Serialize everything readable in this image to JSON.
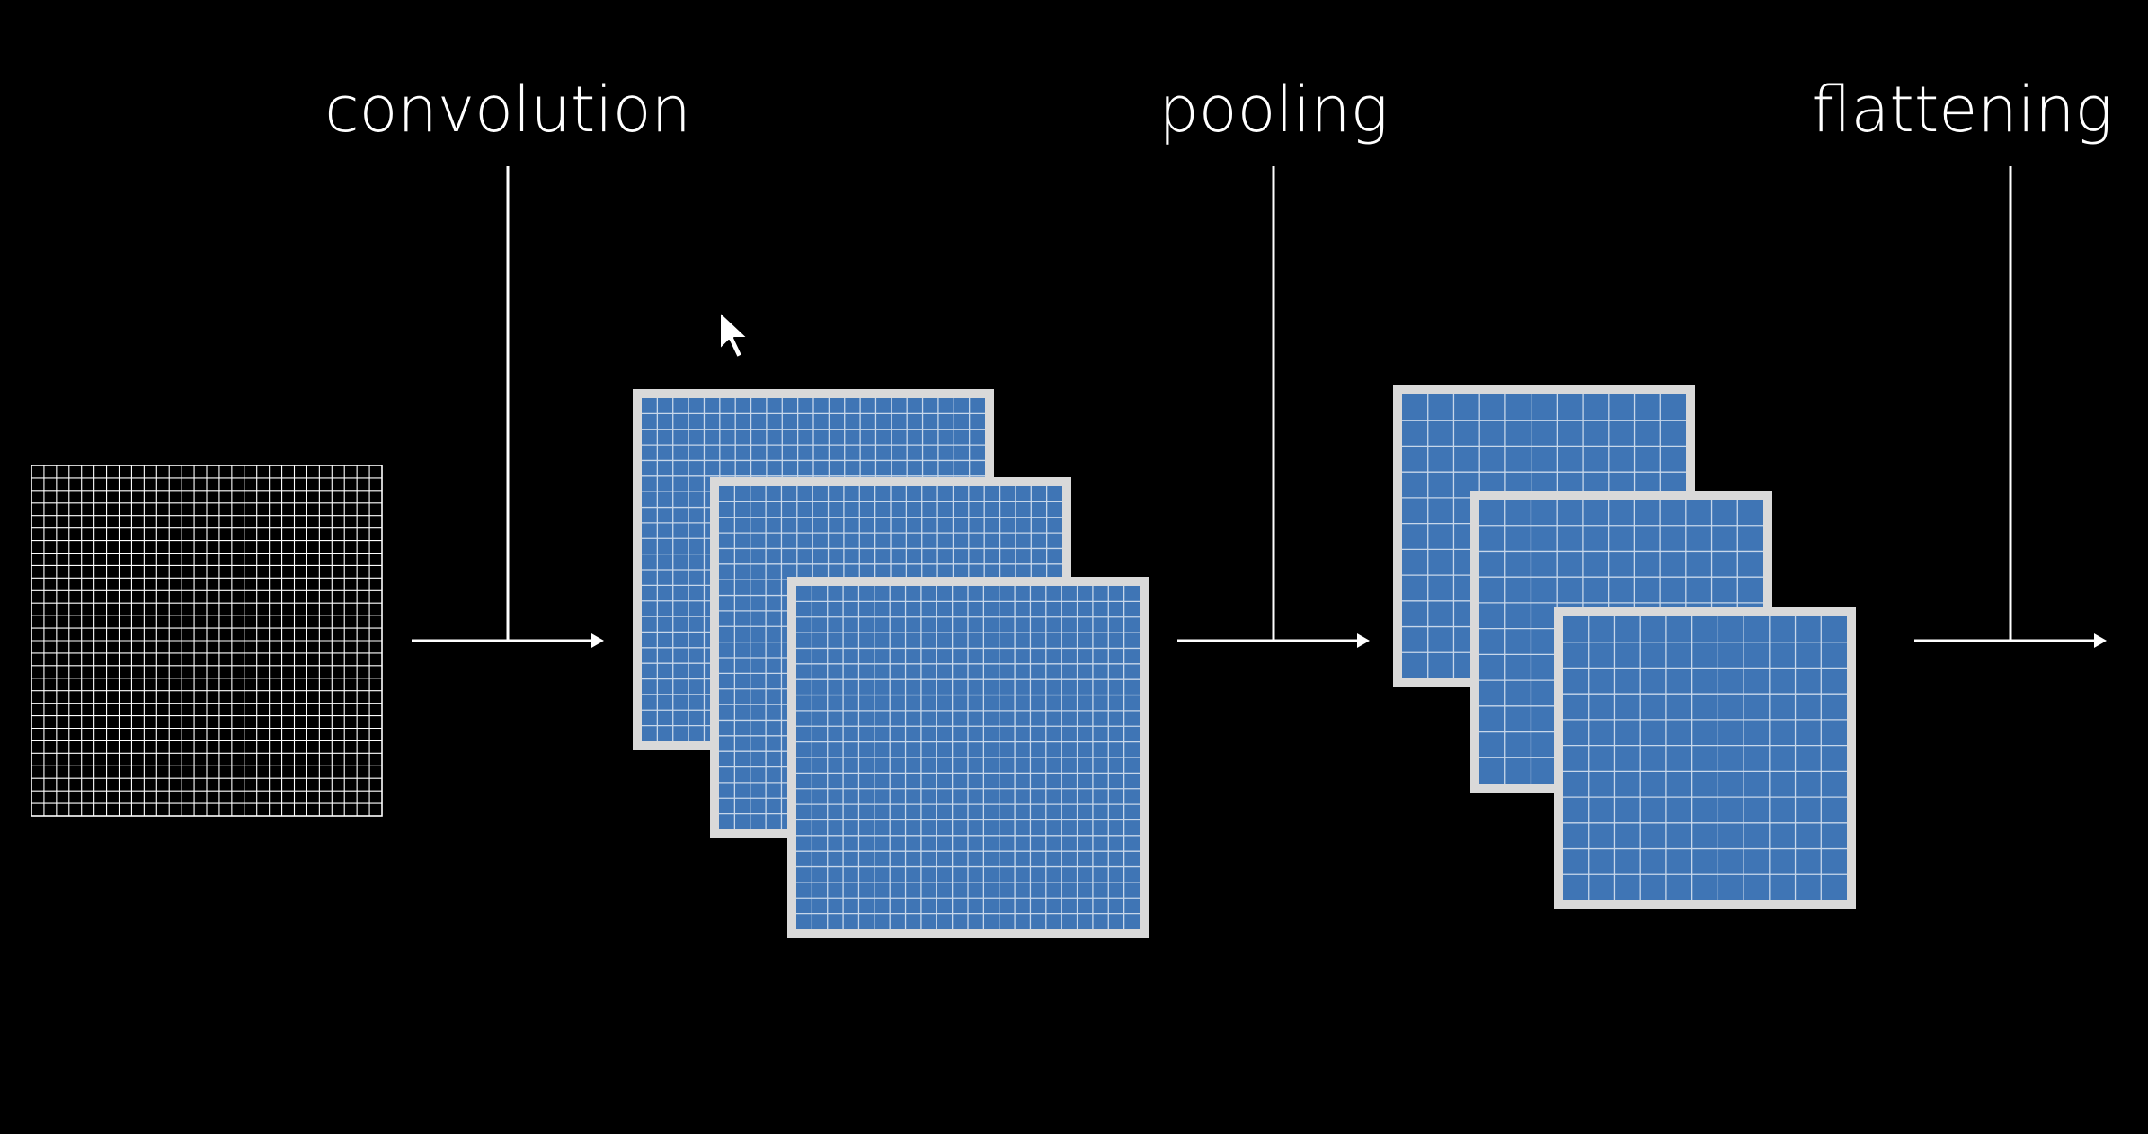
{
  "diagram": {
    "background_color": "#000000",
    "line_color": "#ffffff",
    "input": {
      "grid_cells": 28,
      "grid_color": "#ffffff"
    },
    "stages": [
      {
        "label": "convolution"
      },
      {
        "label": "pooling"
      },
      {
        "label": "flattening"
      }
    ],
    "convolution_maps": {
      "count": 3,
      "grid_cells": 22,
      "fill_color": "#3f75b5",
      "border_color": "#d9d9d9",
      "grid_line_color": "#c7d7ea"
    },
    "pooling_maps": {
      "count": 3,
      "grid_cells": 11,
      "fill_color": "#3f75b5",
      "border_color": "#d9d9d9",
      "grid_line_color": "#c7d7ea"
    }
  },
  "cursor": {
    "icon": "mouse-pointer-icon"
  }
}
